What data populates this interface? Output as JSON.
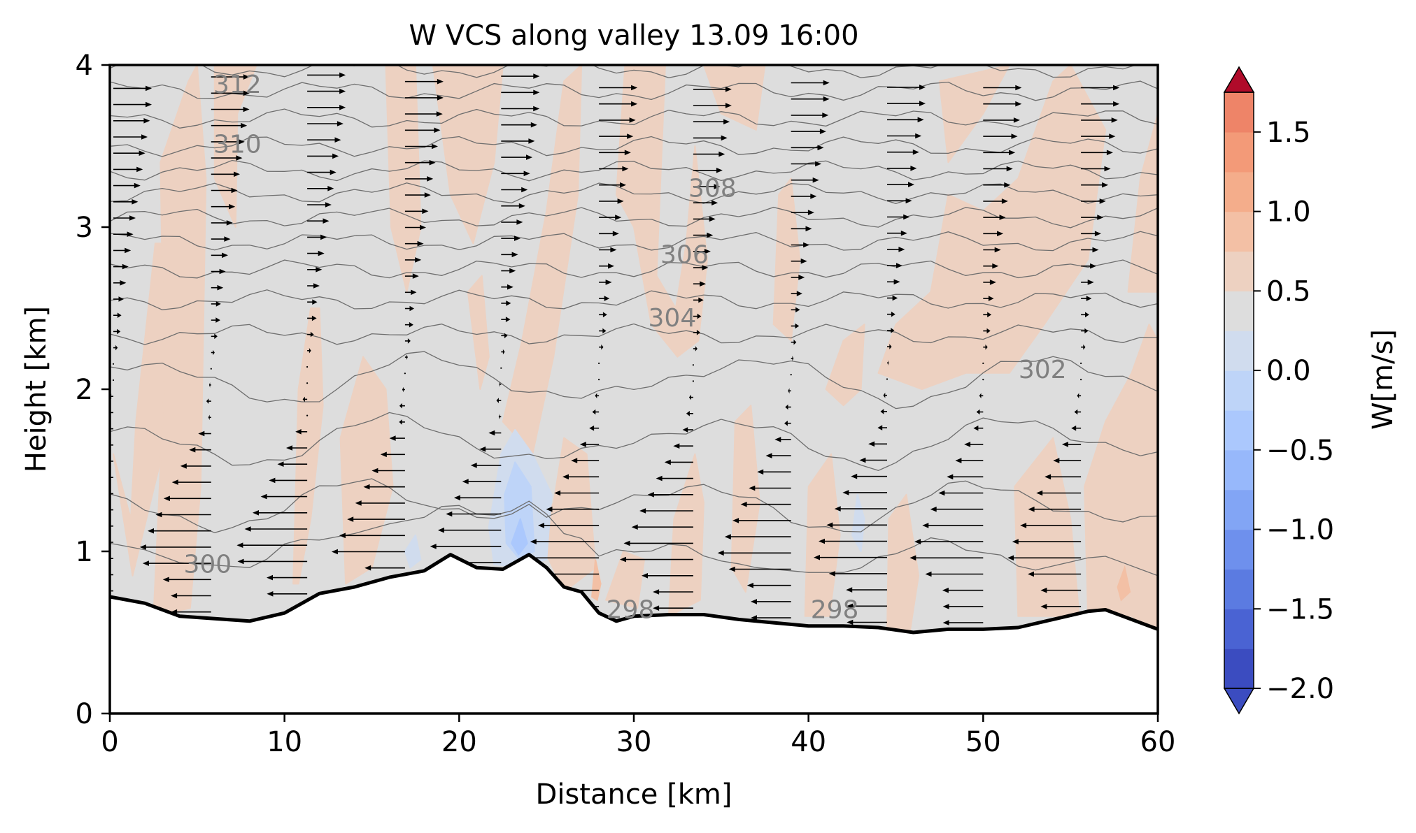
{
  "chart_data": {
    "type": "contour",
    "title": "W VCS along valley 13.09 16:00",
    "xlabel": "Distance [km]",
    "ylabel": "Height [km]",
    "xlim": [
      0,
      60
    ],
    "ylim": [
      0,
      4
    ],
    "x_ticks": [
      0,
      10,
      20,
      30,
      40,
      50,
      60
    ],
    "y_ticks": [
      0,
      1,
      2,
      3,
      4
    ],
    "colorbar": {
      "label": "W[m/s]",
      "ticks": [
        -2.0,
        -1.5,
        -1.0,
        -0.5,
        0.0,
        0.5,
        1.0,
        1.5
      ],
      "tick_labels": [
        "−2.0",
        "−1.5",
        "−1.0",
        "−0.5",
        "0.0",
        "0.5",
        "1.0",
        "1.5"
      ],
      "range": [
        -2.0,
        1.75
      ],
      "step": 0.25,
      "extend": "both",
      "colormap": "coolwarm",
      "colors": [
        "#3b4cc0",
        "#4a63d3",
        "#5b7be1",
        "#6e90ed",
        "#82a5f5",
        "#97b8fb",
        "#abc8fd",
        "#bed4f8",
        "#d0dcee",
        "#dddddd",
        "#edd1c1",
        "#f3c0a5",
        "#f4ad8b",
        "#f39a78",
        "#ee8468",
        "#e36b54",
        "#d8543f",
        "#c63b32",
        "#b40426",
        "#b00b2a"
      ]
    },
    "terrain": {
      "distance_km": [
        0,
        2,
        4,
        8,
        10,
        12,
        14,
        16,
        18,
        19.5,
        21,
        22.5,
        24,
        25,
        26,
        27,
        28,
        29,
        30,
        32,
        34,
        36,
        38,
        40,
        42,
        44,
        46,
        48,
        50,
        52,
        54,
        56,
        57,
        58,
        60
      ],
      "height_km": [
        0.72,
        0.68,
        0.6,
        0.57,
        0.62,
        0.74,
        0.78,
        0.84,
        0.88,
        0.98,
        0.9,
        0.89,
        0.98,
        0.9,
        0.78,
        0.75,
        0.62,
        0.57,
        0.6,
        0.61,
        0.61,
        0.58,
        0.56,
        0.54,
        0.54,
        0.53,
        0.5,
        0.52,
        0.52,
        0.53,
        0.58,
        0.63,
        0.64,
        0.6,
        0.52
      ]
    },
    "isentrope_labels": [
      {
        "text": "312",
        "x_km": 7.3,
        "y_km": 3.88
      },
      {
        "text": "310",
        "x_km": 7.3,
        "y_km": 3.51
      },
      {
        "text": "308",
        "x_km": 34.5,
        "y_km": 3.24
      },
      {
        "text": "306",
        "x_km": 32.9,
        "y_km": 2.83
      },
      {
        "text": "304",
        "x_km": 32.2,
        "y_km": 2.44
      },
      {
        "text": "302",
        "x_km": 53.4,
        "y_km": 2.12
      },
      {
        "text": "300",
        "x_km": 5.6,
        "y_km": 0.92
      },
      {
        "text": "298",
        "x_km": 29.8,
        "y_km": 0.64
      },
      {
        "text": "298",
        "x_km": 41.5,
        "y_km": 0.64
      }
    ],
    "isentrope_heights_x0_km": [
      3.98,
      3.84,
      3.67,
      3.5,
      3.35,
      3.21,
      3.06,
      2.91,
      2.74,
      2.55,
      2.34,
      2.06,
      1.68,
      1.28,
      0.92
    ],
    "wind_profile_columns_x_km": [
      0.2,
      5.8,
      11.3,
      16.9,
      22.4,
      28.0,
      33.4,
      39.0,
      44.5,
      50.0,
      55.6
    ],
    "wind_field": {
      "upper_layer": "westerly (toward +x) above about 2.5 km, strengthening with height",
      "valley_layer": "easterly (toward -x) below about 1.5-1.9 km, strongest near 1 km",
      "transition": "near-calm between about 1.9 and 2.4 km"
    },
    "w_field": {
      "background": "0 to -0.25 m/s (grey)",
      "positive_regions": "0 to 0.5 m/s in vertical plumes over slopes and ridges",
      "negative_regions": "down to -1.0 m/s near x=22-25 km, y=1.0-1.6 km"
    }
  }
}
